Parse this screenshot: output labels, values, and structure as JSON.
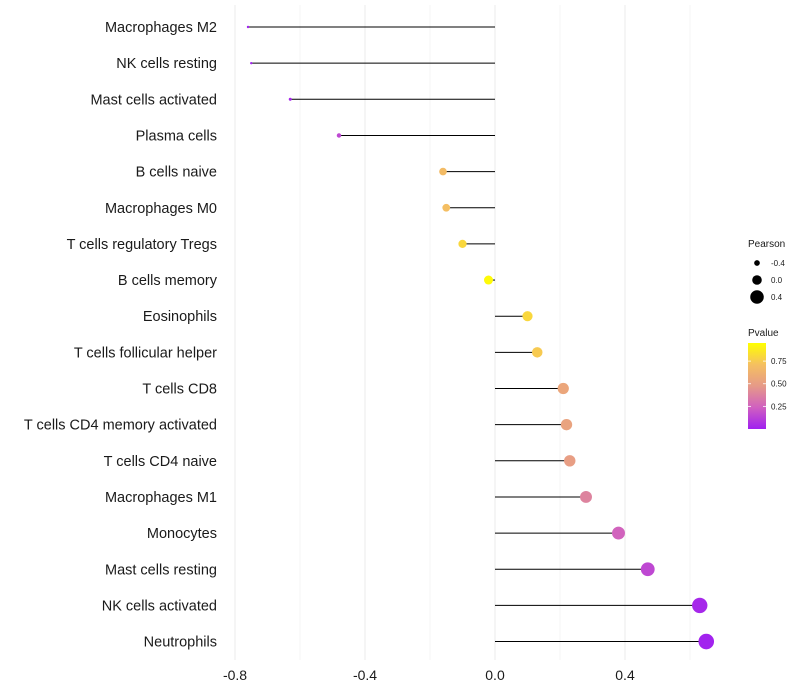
{
  "chart_data": {
    "type": "lollipop",
    "title": "",
    "xlabel": "",
    "ylabel": "",
    "xlim": [
      -0.8,
      0.65
    ],
    "x_ticks": [
      -0.8,
      -0.4,
      0.0,
      0.4
    ],
    "x_tick_labels": [
      "-0.8",
      "-0.4",
      "0.0",
      "0.4"
    ],
    "grid": "vertical",
    "points": [
      {
        "category": "Macrophages M2",
        "value": -0.76,
        "pvalue": 0.01
      },
      {
        "category": "NK cells resting",
        "value": -0.75,
        "pvalue": 0.01
      },
      {
        "category": "Mast cells activated",
        "value": -0.63,
        "pvalue": 0.03
      },
      {
        "category": "Plasma cells",
        "value": -0.48,
        "pvalue": 0.15
      },
      {
        "category": "B cells naive",
        "value": -0.16,
        "pvalue": 0.68
      },
      {
        "category": "Macrophages M0",
        "value": -0.15,
        "pvalue": 0.7
      },
      {
        "category": "T cells regulatory  Tregs",
        "value": -0.1,
        "pvalue": 0.8
      },
      {
        "category": "B cells memory",
        "value": -0.02,
        "pvalue": 0.93
      },
      {
        "category": "Eosinophils",
        "value": 0.1,
        "pvalue": 0.8
      },
      {
        "category": "T cells follicular helper",
        "value": 0.13,
        "pvalue": 0.75
      },
      {
        "category": "T cells CD8",
        "value": 0.21,
        "pvalue": 0.55
      },
      {
        "category": "T cells CD4 memory activated",
        "value": 0.22,
        "pvalue": 0.53
      },
      {
        "category": "T cells CD4 naive",
        "value": 0.23,
        "pvalue": 0.5
      },
      {
        "category": "Macrophages M1",
        "value": 0.28,
        "pvalue": 0.38
      },
      {
        "category": "Monocytes",
        "value": 0.38,
        "pvalue": 0.25
      },
      {
        "category": "Mast cells resting",
        "value": 0.47,
        "pvalue": 0.15
      },
      {
        "category": "NK cells activated",
        "value": 0.63,
        "pvalue": 0.03
      },
      {
        "category": "Neutrophils",
        "value": 0.65,
        "pvalue": 0.01
      }
    ],
    "legend_size": {
      "title": "Pearson",
      "labels": [
        "-0.4",
        "0.0",
        "0.4"
      ],
      "values": [
        -0.4,
        0.0,
        0.4
      ]
    },
    "legend_color": {
      "title": "Pvalue",
      "labels": [
        "0.75",
        "0.50",
        "0.25"
      ],
      "values": [
        0.75,
        0.5,
        0.25
      ],
      "range": [
        0.0,
        0.95
      ],
      "colors": [
        "#a020f0",
        "#d060c0",
        "#e69a88",
        "#f5c060",
        "#ffff00"
      ]
    }
  }
}
